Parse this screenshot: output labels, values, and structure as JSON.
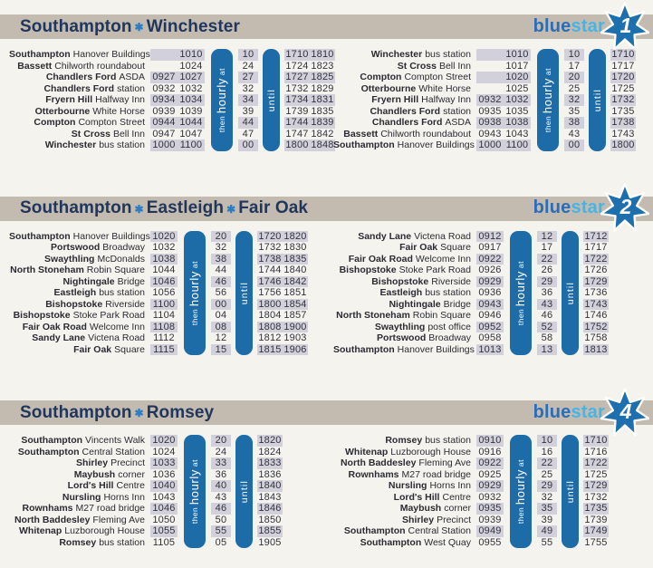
{
  "colors": {
    "page_background": "#f5f3ee",
    "header_bar": "#c3bbb0",
    "title_text": "#20365c",
    "accent_star": "#2e7dc2",
    "bar_blue": "#1d6ca7",
    "row_stripe": "#d2d1db",
    "time_text": "#32323d",
    "logo_blue": "#2c6db6",
    "logo_light_blue": "#45b5e7",
    "badge_blue": "#1d6fae"
  },
  "logo": {
    "text_blue": "blue",
    "text_star": "star"
  },
  "labels": {
    "title_separator": "✱",
    "hourly_then": "then",
    "hourly_main": "hourly",
    "hourly_at": "at",
    "until": "until"
  },
  "sections": [
    {
      "title_parts": [
        "Southampton",
        "Winchester"
      ],
      "route_number": "1",
      "tables": [
        {
          "side": "left",
          "before_cols": 2,
          "after_cols": 2,
          "rows": [
            {
              "stop_bold": "Southampton",
              "stop_rest": "Hanover Buildings",
              "before": [
                "",
                "1010"
              ],
              "minute": "10",
              "after": [
                "1710",
                "1810"
              ]
            },
            {
              "stop_bold": "Bassett",
              "stop_rest": "Chilworth roundabout",
              "before": [
                "",
                "1024"
              ],
              "minute": "24",
              "after": [
                "1724",
                "1823"
              ]
            },
            {
              "stop_bold": "Chandlers Ford",
              "stop_rest": "ASDA",
              "before": [
                "0927",
                "1027"
              ],
              "minute": "27",
              "after": [
                "1727",
                "1825"
              ]
            },
            {
              "stop_bold": "Chandlers Ford",
              "stop_rest": "station",
              "before": [
                "0932",
                "1032"
              ],
              "minute": "32",
              "after": [
                "1732",
                "1829"
              ]
            },
            {
              "stop_bold": "Fryern Hill",
              "stop_rest": "Halfway Inn",
              "before": [
                "0934",
                "1034"
              ],
              "minute": "34",
              "after": [
                "1734",
                "1831"
              ]
            },
            {
              "stop_bold": "Otterbourne",
              "stop_rest": "White Horse",
              "before": [
                "0939",
                "1039"
              ],
              "minute": "39",
              "after": [
                "1739",
                "1835"
              ]
            },
            {
              "stop_bold": "Compton",
              "stop_rest": "Compton Street",
              "before": [
                "0944",
                "1044"
              ],
              "minute": "44",
              "after": [
                "1744",
                "1839"
              ]
            },
            {
              "stop_bold": "St Cross",
              "stop_rest": "Bell Inn",
              "before": [
                "0947",
                "1047"
              ],
              "minute": "47",
              "after": [
                "1747",
                "1842"
              ]
            },
            {
              "stop_bold": "Winchester",
              "stop_rest": "bus station",
              "before": [
                "1000",
                "1100"
              ],
              "minute": "00",
              "after": [
                "1800",
                "1848"
              ]
            }
          ]
        },
        {
          "side": "right",
          "before_cols": 2,
          "after_cols": 1,
          "rows": [
            {
              "stop_bold": "Winchester",
              "stop_rest": "bus station",
              "before": [
                "",
                "1010"
              ],
              "minute": "10",
              "after": [
                "1710"
              ]
            },
            {
              "stop_bold": "St Cross",
              "stop_rest": "Bell Inn",
              "before": [
                "",
                "1017"
              ],
              "minute": "17",
              "after": [
                "1717"
              ]
            },
            {
              "stop_bold": "Compton",
              "stop_rest": "Compton Street",
              "before": [
                "",
                "1020"
              ],
              "minute": "20",
              "after": [
                "1720"
              ]
            },
            {
              "stop_bold": "Otterbourne",
              "stop_rest": "White Horse",
              "before": [
                "",
                "1025"
              ],
              "minute": "25",
              "after": [
                "1725"
              ]
            },
            {
              "stop_bold": "Fryern Hill",
              "stop_rest": "Halfway Inn",
              "before": [
                "0932",
                "1032"
              ],
              "minute": "32",
              "after": [
                "1732"
              ]
            },
            {
              "stop_bold": "Chandlers Ford",
              "stop_rest": "station",
              "before": [
                "0935",
                "1035"
              ],
              "minute": "35",
              "after": [
                "1735"
              ]
            },
            {
              "stop_bold": "Chandlers Ford",
              "stop_rest": "ASDA",
              "before": [
                "0938",
                "1038"
              ],
              "minute": "38",
              "after": [
                "1738"
              ]
            },
            {
              "stop_bold": "Bassett",
              "stop_rest": "Chilworth roundabout",
              "before": [
                "0943",
                "1043"
              ],
              "minute": "43",
              "after": [
                "1743"
              ]
            },
            {
              "stop_bold": "Southampton",
              "stop_rest": "Hanover Buildings",
              "before": [
                "1000",
                "1100"
              ],
              "minute": "00",
              "after": [
                "1800"
              ]
            }
          ]
        }
      ]
    },
    {
      "title_parts": [
        "Southampton",
        "Eastleigh",
        "Fair Oak"
      ],
      "route_number": "2",
      "tables": [
        {
          "side": "left",
          "before_cols": 1,
          "after_cols": 2,
          "rows": [
            {
              "stop_bold": "Southampton",
              "stop_rest": "Hanover Buildings",
              "before": [
                "1020"
              ],
              "minute": "20",
              "after": [
                "1720",
                "1820"
              ]
            },
            {
              "stop_bold": "Portswood",
              "stop_rest": "Broadway",
              "before": [
                "1032"
              ],
              "minute": "32",
              "after": [
                "1732",
                "1830"
              ]
            },
            {
              "stop_bold": "Swaythling",
              "stop_rest": "McDonalds",
              "before": [
                "1038"
              ],
              "minute": "38",
              "after": [
                "1738",
                "1835"
              ]
            },
            {
              "stop_bold": "North Stoneham",
              "stop_rest": "Robin Square",
              "before": [
                "1044"
              ],
              "minute": "44",
              "after": [
                "1744",
                "1840"
              ]
            },
            {
              "stop_bold": "Nightingale",
              "stop_rest": "Bridge",
              "before": [
                "1046"
              ],
              "minute": "46",
              "after": [
                "1746",
                "1842"
              ]
            },
            {
              "stop_bold": "Eastleigh",
              "stop_rest": "bus station",
              "before": [
                "1056"
              ],
              "minute": "56",
              "after": [
                "1756",
                "1851"
              ]
            },
            {
              "stop_bold": "Bishopstoke",
              "stop_rest": "Riverside",
              "before": [
                "1100"
              ],
              "minute": "00",
              "after": [
                "1800",
                "1854"
              ]
            },
            {
              "stop_bold": "Bishopstoke",
              "stop_rest": "Stoke Park Road",
              "before": [
                "1104"
              ],
              "minute": "04",
              "after": [
                "1804",
                "1857"
              ]
            },
            {
              "stop_bold": "Fair Oak Road",
              "stop_rest": "Welcome Inn",
              "before": [
                "1108"
              ],
              "minute": "08",
              "after": [
                "1808",
                "1900"
              ]
            },
            {
              "stop_bold": "Sandy Lane",
              "stop_rest": "Victena Road",
              "before": [
                "1112"
              ],
              "minute": "12",
              "after": [
                "1812",
                "1903"
              ]
            },
            {
              "stop_bold": "Fair Oak",
              "stop_rest": "Square",
              "before": [
                "1115"
              ],
              "minute": "15",
              "after": [
                "1815",
                "1906"
              ]
            }
          ]
        },
        {
          "side": "right",
          "before_cols": 1,
          "after_cols": 1,
          "rows": [
            {
              "stop_bold": "Sandy Lane",
              "stop_rest": "Victena Road",
              "before": [
                "0912"
              ],
              "minute": "12",
              "after": [
                "1712"
              ]
            },
            {
              "stop_bold": "Fair Oak",
              "stop_rest": "Square",
              "before": [
                "0917"
              ],
              "minute": "17",
              "after": [
                "1717"
              ]
            },
            {
              "stop_bold": "Fair Oak Road",
              "stop_rest": "Welcome Inn",
              "before": [
                "0922"
              ],
              "minute": "22",
              "after": [
                "1722"
              ]
            },
            {
              "stop_bold": "Bishopstoke",
              "stop_rest": "Stoke Park Road",
              "before": [
                "0926"
              ],
              "minute": "26",
              "after": [
                "1726"
              ]
            },
            {
              "stop_bold": "Bishopstoke",
              "stop_rest": "Riverside",
              "before": [
                "0929"
              ],
              "minute": "29",
              "after": [
                "1729"
              ]
            },
            {
              "stop_bold": "Eastleigh",
              "stop_rest": "bus station",
              "before": [
                "0936"
              ],
              "minute": "36",
              "after": [
                "1736"
              ]
            },
            {
              "stop_bold": "Nightingale",
              "stop_rest": "Bridge",
              "before": [
                "0943"
              ],
              "minute": "43",
              "after": [
                "1743"
              ]
            },
            {
              "stop_bold": "North Stoneham",
              "stop_rest": "Robin Square",
              "before": [
                "0946"
              ],
              "minute": "46",
              "after": [
                "1746"
              ]
            },
            {
              "stop_bold": "Swaythling",
              "stop_rest": "post office",
              "before": [
                "0952"
              ],
              "minute": "52",
              "after": [
                "1752"
              ]
            },
            {
              "stop_bold": "Portswood",
              "stop_rest": "Broadway",
              "before": [
                "0958"
              ],
              "minute": "58",
              "after": [
                "1758"
              ]
            },
            {
              "stop_bold": "Southampton",
              "stop_rest": "Hanover Buildings",
              "before": [
                "1013"
              ],
              "minute": "13",
              "after": [
                "1813"
              ]
            }
          ]
        }
      ]
    },
    {
      "title_parts": [
        "Southampton",
        "Romsey"
      ],
      "route_number": "4",
      "tables": [
        {
          "side": "left",
          "before_cols": 1,
          "after_cols": 1,
          "rows": [
            {
              "stop_bold": "Southampton",
              "stop_rest": "Vincents Walk",
              "before": [
                "1020"
              ],
              "minute": "20",
              "after": [
                "1820"
              ]
            },
            {
              "stop_bold": "Southampton",
              "stop_rest": "Central Station",
              "before": [
                "1024"
              ],
              "minute": "24",
              "after": [
                "1824"
              ]
            },
            {
              "stop_bold": "Shirley",
              "stop_rest": "Precinct",
              "before": [
                "1033"
              ],
              "minute": "33",
              "after": [
                "1833"
              ]
            },
            {
              "stop_bold": "Maybush",
              "stop_rest": "corner",
              "before": [
                "1036"
              ],
              "minute": "36",
              "after": [
                "1836"
              ]
            },
            {
              "stop_bold": "Lord's Hill",
              "stop_rest": "Centre",
              "before": [
                "1040"
              ],
              "minute": "40",
              "after": [
                "1840"
              ]
            },
            {
              "stop_bold": "Nursling",
              "stop_rest": "Horns Inn",
              "before": [
                "1043"
              ],
              "minute": "43",
              "after": [
                "1843"
              ]
            },
            {
              "stop_bold": "Rownhams",
              "stop_rest": "M27 road bridge",
              "before": [
                "1046"
              ],
              "minute": "46",
              "after": [
                "1846"
              ]
            },
            {
              "stop_bold": "North Baddesley",
              "stop_rest": "Fleming Ave",
              "before": [
                "1050"
              ],
              "minute": "50",
              "after": [
                "1850"
              ]
            },
            {
              "stop_bold": "Whitenap",
              "stop_rest": "Luzborough House",
              "before": [
                "1055"
              ],
              "minute": "55",
              "after": [
                "1855"
              ]
            },
            {
              "stop_bold": "Romsey",
              "stop_rest": "bus station",
              "before": [
                "1105"
              ],
              "minute": "05",
              "after": [
                "1905"
              ]
            }
          ]
        },
        {
          "side": "right",
          "before_cols": 1,
          "after_cols": 1,
          "rows": [
            {
              "stop_bold": "Romsey",
              "stop_rest": "bus station",
              "before": [
                "0910"
              ],
              "minute": "10",
              "after": [
                "1710"
              ]
            },
            {
              "stop_bold": "Whitenap",
              "stop_rest": "Luzborough House",
              "before": [
                "0916"
              ],
              "minute": "16",
              "after": [
                "1716"
              ]
            },
            {
              "stop_bold": "North Baddesley",
              "stop_rest": "Fleming Ave",
              "before": [
                "0922"
              ],
              "minute": "22",
              "after": [
                "1722"
              ]
            },
            {
              "stop_bold": "Rownhams",
              "stop_rest": "M27 road bridge",
              "before": [
                "0925"
              ],
              "minute": "25",
              "after": [
                "1725"
              ]
            },
            {
              "stop_bold": "Nursling",
              "stop_rest": "Horns Inn",
              "before": [
                "0929"
              ],
              "minute": "29",
              "after": [
                "1729"
              ]
            },
            {
              "stop_bold": "Lord's Hill",
              "stop_rest": "Centre",
              "before": [
                "0932"
              ],
              "minute": "32",
              "after": [
                "1732"
              ]
            },
            {
              "stop_bold": "Maybush",
              "stop_rest": "corner",
              "before": [
                "0935"
              ],
              "minute": "35",
              "after": [
                "1735"
              ]
            },
            {
              "stop_bold": "Shirley",
              "stop_rest": "Precinct",
              "before": [
                "0939"
              ],
              "minute": "39",
              "after": [
                "1739"
              ]
            },
            {
              "stop_bold": "Southampton",
              "stop_rest": "Central Station",
              "before": [
                "0949"
              ],
              "minute": "49",
              "after": [
                "1749"
              ]
            },
            {
              "stop_bold": "Southampton",
              "stop_rest": "West Quay",
              "before": [
                "0955"
              ],
              "minute": "55",
              "after": [
                "1755"
              ]
            }
          ]
        }
      ]
    }
  ]
}
